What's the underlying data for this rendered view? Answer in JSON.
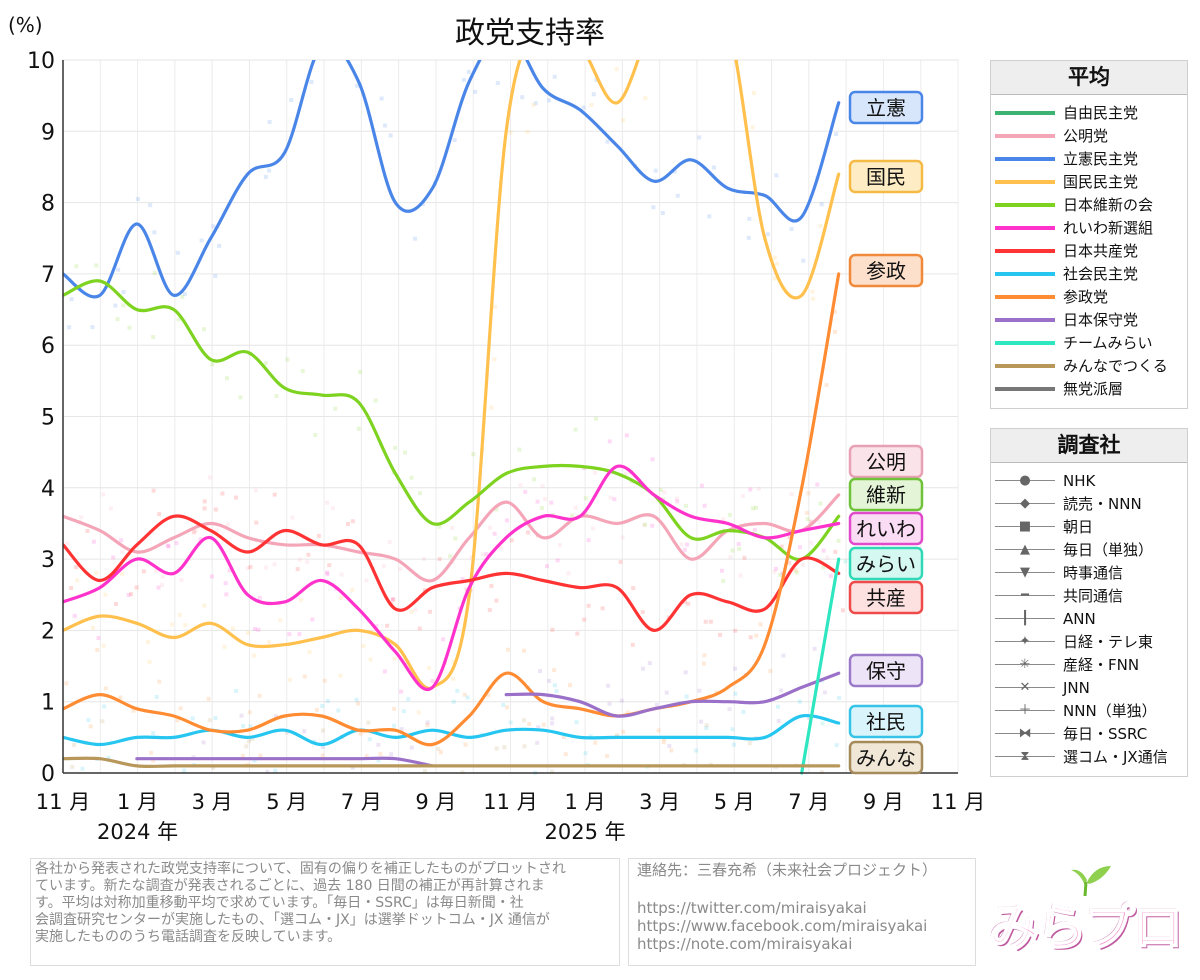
{
  "chart_data": {
    "type": "line",
    "title": "政党支持率",
    "ylabel": "(%)",
    "ylim": [
      0,
      10
    ],
    "yticks": [
      "0",
      "1",
      "2",
      "3",
      "4",
      "5",
      "6",
      "7",
      "8",
      "9",
      "10"
    ],
    "month_labels": [
      "11 月",
      "1 月",
      "3 月",
      "5 月",
      "7 月",
      "9 月",
      "11 月",
      "1 月",
      "3 月",
      "5 月",
      "7 月",
      "9 月",
      "11 月"
    ],
    "year_labels": [
      "2024 年",
      "2025 年"
    ],
    "x": [
      "2023-11",
      "2023-12",
      "2024-01",
      "2024-02",
      "2024-03",
      "2024-04",
      "2024-05",
      "2024-06",
      "2024-07",
      "2024-08",
      "2024-09",
      "2024-10",
      "2024-11",
      "2024-12",
      "2025-01",
      "2025-02",
      "2025-03",
      "2025-04",
      "2025-05",
      "2025-06",
      "2025-07",
      "2025-08"
    ],
    "series": [
      {
        "name": "自由民主党",
        "color": "#3cb371",
        "values": [
          null,
          null,
          null,
          null,
          null,
          null,
          null,
          null,
          null,
          null,
          null,
          null,
          null,
          null,
          null,
          null,
          null,
          null,
          null,
          null,
          null,
          null
        ]
      },
      {
        "name": "公明党",
        "color": "#f4a6b8",
        "values": [
          3.6,
          3.4,
          3.1,
          3.3,
          3.5,
          3.3,
          3.2,
          3.2,
          3.1,
          3.0,
          2.7,
          3.3,
          3.8,
          3.3,
          3.6,
          3.5,
          3.6,
          3.0,
          3.4,
          3.5,
          3.4,
          3.9
        ]
      },
      {
        "name": "立憲民主党",
        "color": "#4a86e8",
        "values": [
          7.0,
          6.7,
          7.7,
          6.7,
          7.5,
          8.4,
          8.7,
          10.2,
          9.7,
          8.0,
          8.2,
          9.7,
          10.4,
          9.6,
          9.3,
          8.8,
          8.3,
          8.6,
          8.2,
          8.1,
          7.8,
          9.4
        ]
      },
      {
        "name": "国民民主党",
        "color": "#ffc04d",
        "values": [
          2.0,
          2.2,
          2.1,
          1.9,
          2.1,
          1.8,
          1.8,
          1.9,
          2.0,
          1.8,
          1.2,
          2.5,
          9.0,
          10.5,
          10.2,
          9.4,
          10.5,
          10.5,
          10.5,
          7.5,
          6.7,
          8.4
        ]
      },
      {
        "name": "日本維新の会",
        "color": "#7ed321",
        "values": [
          6.7,
          6.9,
          6.5,
          6.5,
          5.8,
          5.9,
          5.4,
          5.3,
          5.2,
          4.2,
          3.5,
          3.8,
          4.2,
          4.3,
          4.3,
          4.2,
          3.9,
          3.3,
          3.4,
          3.3,
          3.0,
          3.6
        ]
      },
      {
        "name": "れいわ新選組",
        "color": "#ff33cc",
        "values": [
          2.4,
          2.6,
          3.0,
          2.8,
          3.3,
          2.5,
          2.4,
          2.7,
          2.3,
          1.7,
          1.2,
          2.6,
          3.3,
          3.6,
          3.6,
          4.3,
          3.9,
          3.6,
          3.5,
          3.3,
          3.4,
          3.5
        ]
      },
      {
        "name": "日本共産党",
        "color": "#ff3333",
        "values": [
          3.2,
          2.7,
          3.2,
          3.6,
          3.4,
          3.1,
          3.4,
          3.2,
          3.2,
          2.3,
          2.6,
          2.7,
          2.8,
          2.7,
          2.6,
          2.6,
          2.0,
          2.5,
          2.4,
          2.3,
          3.0,
          2.8
        ]
      },
      {
        "name": "社会民主党",
        "color": "#26c6f0",
        "values": [
          0.5,
          0.4,
          0.5,
          0.5,
          0.6,
          0.5,
          0.6,
          0.4,
          0.6,
          0.5,
          0.6,
          0.5,
          0.6,
          0.6,
          0.5,
          0.5,
          0.5,
          0.5,
          0.5,
          0.5,
          0.8,
          0.7
        ]
      },
      {
        "name": "参政党",
        "color": "#ff8c33",
        "values": [
          0.9,
          1.1,
          0.9,
          0.8,
          0.6,
          0.6,
          0.8,
          0.8,
          0.6,
          0.6,
          0.4,
          0.8,
          1.4,
          1.0,
          0.9,
          0.8,
          0.9,
          1.0,
          1.2,
          1.8,
          4.0,
          7.0
        ]
      },
      {
        "name": "日本保守党",
        "color": "#9b70c8",
        "values": [
          null,
          null,
          0.2,
          0.2,
          0.2,
          0.2,
          0.2,
          0.2,
          0.2,
          0.2,
          0.1,
          null,
          1.1,
          1.1,
          1.0,
          0.8,
          0.9,
          1.0,
          1.0,
          1.0,
          1.2,
          1.4
        ]
      },
      {
        "name": "チームみらい",
        "color": "#2ee6c0",
        "values": [
          null,
          null,
          null,
          null,
          null,
          null,
          null,
          null,
          null,
          null,
          null,
          null,
          null,
          null,
          null,
          null,
          null,
          null,
          null,
          null,
          0.0,
          3.0
        ]
      },
      {
        "name": "みんなでつくる",
        "color": "#b8975a",
        "values": [
          0.2,
          0.2,
          0.1,
          0.1,
          0.1,
          0.1,
          0.1,
          0.1,
          0.1,
          0.1,
          0.1,
          0.1,
          0.1,
          0.1,
          0.1,
          0.1,
          0.1,
          0.1,
          0.1,
          0.1,
          0.1,
          0.1
        ]
      },
      {
        "name": "無党派層",
        "color": "#777777",
        "values": [
          null,
          null,
          null,
          null,
          null,
          null,
          null,
          null,
          null,
          null,
          null,
          null,
          null,
          null,
          null,
          null,
          null,
          null,
          null,
          null,
          null,
          null
        ]
      }
    ],
    "end_labels": [
      {
        "text": "立憲",
        "color": "#4a86e8",
        "fill": "#d7e6fb",
        "value": 9.4
      },
      {
        "text": "国民",
        "color": "#f5b945",
        "fill": "#fdecc4",
        "value": 8.4
      },
      {
        "text": "参政",
        "color": "#f08a3a",
        "fill": "#fde0cc",
        "value": 7.0
      },
      {
        "text": "公明",
        "color": "#e8a0b4",
        "fill": "#fbe3ea",
        "value": 3.9
      },
      {
        "text": "維新",
        "color": "#6fc23a",
        "fill": "#e3f5d6",
        "value": 3.6
      },
      {
        "text": "れいわ",
        "color": "#e04acb",
        "fill": "#fadcf4",
        "value": 3.5
      },
      {
        "text": "みらい",
        "color": "#2fd9b8",
        "fill": "#d5f8f1",
        "value": 3.0
      },
      {
        "text": "共産",
        "color": "#ef4a4a",
        "fill": "#fde0e0",
        "value": 2.8
      },
      {
        "text": "保守",
        "color": "#9b7ac9",
        "fill": "#eee4f7",
        "value": 1.4
      },
      {
        "text": "社民",
        "color": "#35c3e8",
        "fill": "#daf4fb",
        "value": 0.7
      },
      {
        "text": "みんな",
        "color": "#a58a5a",
        "fill": "#f0e7d6",
        "value": 0.1
      }
    ],
    "grid": true,
    "legend_position": "right"
  },
  "legend_average": {
    "title": "平均",
    "items": [
      {
        "label": "自由民主党",
        "color": "#3cb371"
      },
      {
        "label": "公明党",
        "color": "#f4a6b8"
      },
      {
        "label": "立憲民主党",
        "color": "#4a86e8"
      },
      {
        "label": "国民民主党",
        "color": "#ffc04d"
      },
      {
        "label": "日本維新の会",
        "color": "#7ed321"
      },
      {
        "label": "れいわ新選組",
        "color": "#ff33cc"
      },
      {
        "label": "日本共産党",
        "color": "#ff3333"
      },
      {
        "label": "社会民主党",
        "color": "#26c6f0"
      },
      {
        "label": "参政党",
        "color": "#ff8c33"
      },
      {
        "label": "日本保守党",
        "color": "#9b70c8"
      },
      {
        "label": "チームみらい",
        "color": "#2ee6c0"
      },
      {
        "label": "みんなでつくる",
        "color": "#b8975a"
      },
      {
        "label": "無党派層",
        "color": "#777777"
      }
    ]
  },
  "legend_pollster": {
    "title": "調査社",
    "items": [
      {
        "label": "NHK",
        "symbol": "●"
      },
      {
        "label": "読売・NNN",
        "symbol": "◆"
      },
      {
        "label": "朝日",
        "symbol": "■"
      },
      {
        "label": "毎日（単独）",
        "symbol": "▲"
      },
      {
        "label": "時事通信",
        "symbol": "▼"
      },
      {
        "label": "共同通信",
        "symbol": "━"
      },
      {
        "label": "ANN",
        "symbol": "┃"
      },
      {
        "label": "日経・テレ東",
        "symbol": "✦"
      },
      {
        "label": "産経・FNN",
        "symbol": "✳"
      },
      {
        "label": "JNN",
        "symbol": "✕"
      },
      {
        "label": "NNN（単独）",
        "symbol": "＋"
      },
      {
        "label": "毎日・SSRC",
        "symbol": "⧓"
      },
      {
        "label": "選コム・JX通信",
        "symbol": "⧗"
      }
    ]
  },
  "footer": {
    "note_lines": [
      "各社から発表された政党支持率について、固有の偏りを補正したものがプロットされ",
      "ています。新たな調査が発表されるごとに、過去 180 日間の補正が再計算されま",
      "す。平均は対称加重移動平均で求めています。「毎日・SSRC」は毎日新聞・社",
      "会調査研究センターが実施したもの、「選コム・JX」は選挙ドットコム・JX 通信が",
      "実施したもののうち電話調査を反映しています。"
    ],
    "contact_label": "連絡先：三春充希（未来社会プロジェクト）",
    "links": [
      "https://twitter.com/miraisyakai",
      "https://www.facebook.com/miraisyakai",
      "https://note.com/miraisyakai"
    ],
    "logo_text": "みらプロ"
  }
}
